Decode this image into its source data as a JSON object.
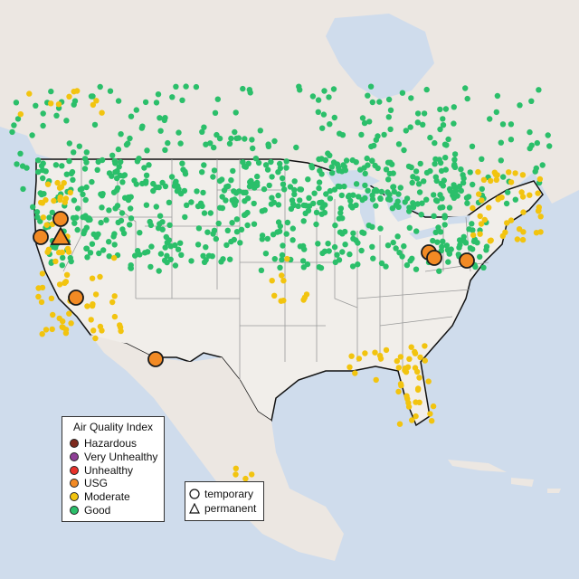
{
  "legend": {
    "title": "Air Quality Index",
    "categories": [
      {
        "label": "Hazardous",
        "color": "#7e2a1e"
      },
      {
        "label": "Very Unhealthy",
        "color": "#8f3f97"
      },
      {
        "label": "Unhealthy",
        "color": "#e8312a"
      },
      {
        "label": "USG",
        "color": "#f28a24"
      },
      {
        "label": "Moderate",
        "color": "#f2c40f"
      },
      {
        "label": "Good",
        "color": "#2bbf6a"
      }
    ]
  },
  "type_legend": {
    "temporary": "temporary",
    "permanent": "permanent"
  },
  "colors": {
    "water": "#cfdcec",
    "land": "#ece7e2",
    "us_land": "#f1eeea",
    "good": "#2bbf6a",
    "moderate": "#f2c40f",
    "usg": "#f28a24"
  }
}
